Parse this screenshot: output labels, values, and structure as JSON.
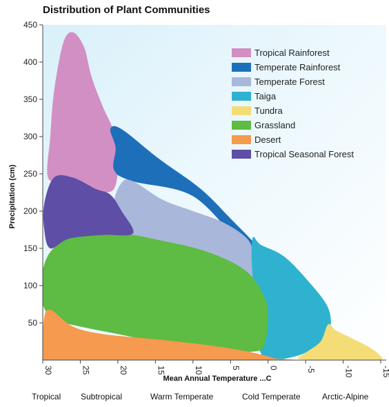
{
  "chart_data": {
    "type": "area",
    "title": "Distribution of Plant Communities",
    "xlabel": "Mean Annual Temperature ...C",
    "ylabel": "Precipitation (cm)",
    "xlim": [
      30,
      -15
    ],
    "ylim": [
      0,
      450
    ],
    "x_ticks": [
      30,
      25,
      20,
      15,
      10,
      5,
      0,
      -5,
      -10,
      -15
    ],
    "x_tick_labels": [
      "30",
      "25",
      "20",
      "15",
      "10",
      "5",
      "0",
      "-5",
      "-10",
      "-15"
    ],
    "y_ticks": [
      50,
      100,
      150,
      200,
      250,
      300,
      350,
      400,
      450
    ],
    "y_tick_labels": [
      "50",
      "100",
      "150",
      "200",
      "250",
      "300",
      "350",
      "400",
      "450"
    ],
    "legend_position": "top-right",
    "zones": [
      "Tropical",
      "Subtropical",
      "Warm Temperate",
      "Cold Temperate",
      "Arctic-Alpine"
    ],
    "series": [
      {
        "name": "Tropical Rainforest",
        "color": "#d28fc4",
        "outline": [
          [
            24.5,
            420
          ],
          [
            26,
            440
          ],
          [
            27.3,
            425
          ],
          [
            28.5,
            360
          ],
          [
            29,
            300
          ],
          [
            29.3,
            245
          ],
          [
            27,
            240
          ],
          [
            23,
            228
          ],
          [
            22,
            225
          ],
          [
            20.5,
            230
          ],
          [
            20,
            260
          ],
          [
            20.5,
            305
          ],
          [
            22,
            340
          ],
          [
            23.5,
            380
          ]
        ]
      },
      {
        "name": "Temperate Rainforest",
        "color": "#1e6fba",
        "outline": [
          [
            21,
            310
          ],
          [
            19.5,
            310
          ],
          [
            14.5,
            270
          ],
          [
            9,
            230
          ],
          [
            5,
            190
          ],
          [
            1.5,
            152
          ],
          [
            3.5,
            155
          ],
          [
            10,
            220
          ],
          [
            18,
            240
          ],
          [
            20.5,
            255
          ],
          [
            20.3,
            285
          ]
        ]
      },
      {
        "name": "Temperate Forest",
        "color": "#a9b7da",
        "outline": [
          [
            19.5,
            238
          ],
          [
            18,
            240
          ],
          [
            14,
            215
          ],
          [
            10,
            200
          ],
          [
            6,
            185
          ],
          [
            3,
            165
          ],
          [
            2,
            145
          ],
          [
            1.5,
            100
          ],
          [
            10,
            110
          ],
          [
            17,
            145
          ],
          [
            19.5,
            175
          ],
          [
            20.5,
            210
          ]
        ]
      },
      {
        "name": "Taiga",
        "color": "#2fb2cf",
        "outline": [
          [
            2,
            165
          ],
          [
            1,
            155
          ],
          [
            -2,
            140
          ],
          [
            -5,
            110
          ],
          [
            -8,
            70
          ],
          [
            -8,
            35
          ],
          [
            -5,
            10
          ],
          [
            -1,
            0
          ],
          [
            0.5,
            2
          ],
          [
            1.5,
            25
          ],
          [
            2,
            60
          ],
          [
            2,
            100
          ],
          [
            2.2,
            140
          ]
        ]
      },
      {
        "name": "Tundra",
        "color": "#f4dd77",
        "outline": [
          [
            -8,
            48
          ],
          [
            -9,
            40
          ],
          [
            -11,
            30
          ],
          [
            -13,
            20
          ],
          [
            -14.5,
            10
          ],
          [
            -15,
            0
          ],
          [
            -11,
            0
          ],
          [
            -7,
            0
          ],
          [
            -4,
            2
          ],
          [
            -5,
            10
          ],
          [
            -7,
            25
          ]
        ]
      },
      {
        "name": "Grassland",
        "color": "#5ebb43",
        "outline": [
          [
            20,
            170
          ],
          [
            14,
            160
          ],
          [
            8,
            145
          ],
          [
            3,
            120
          ],
          [
            0.5,
            85
          ],
          [
            0,
            55
          ],
          [
            0.5,
            20
          ],
          [
            1.5,
            12
          ],
          [
            5,
            12
          ],
          [
            10,
            18
          ],
          [
            15,
            25
          ],
          [
            20,
            35
          ],
          [
            25,
            45
          ],
          [
            28.5,
            55
          ],
          [
            30,
            75
          ],
          [
            30.2,
            110
          ],
          [
            29,
            145
          ],
          [
            26,
            165
          ]
        ]
      },
      {
        "name": "Desert",
        "color": "#f59a4e",
        "outline": [
          [
            29.2,
            68
          ],
          [
            26,
            45
          ],
          [
            22,
            35
          ],
          [
            15,
            28
          ],
          [
            8,
            20
          ],
          [
            3,
            12
          ],
          [
            0,
            5
          ],
          [
            -1,
            2
          ],
          [
            -3,
            0
          ],
          [
            10,
            0
          ],
          [
            20,
            0
          ],
          [
            30,
            0
          ],
          [
            30,
            40
          ]
        ]
      },
      {
        "name": "Tropical Seasonal Forest",
        "color": "#5e4ea5",
        "outline": [
          [
            28.5,
            245
          ],
          [
            26,
            245
          ],
          [
            23,
            230
          ],
          [
            21,
            222
          ],
          [
            19.5,
            200
          ],
          [
            18,
            170
          ],
          [
            22,
            168
          ],
          [
            26.5,
            163
          ],
          [
            29,
            150
          ],
          [
            29.8,
            175
          ],
          [
            29.8,
            210
          ]
        ]
      }
    ]
  }
}
